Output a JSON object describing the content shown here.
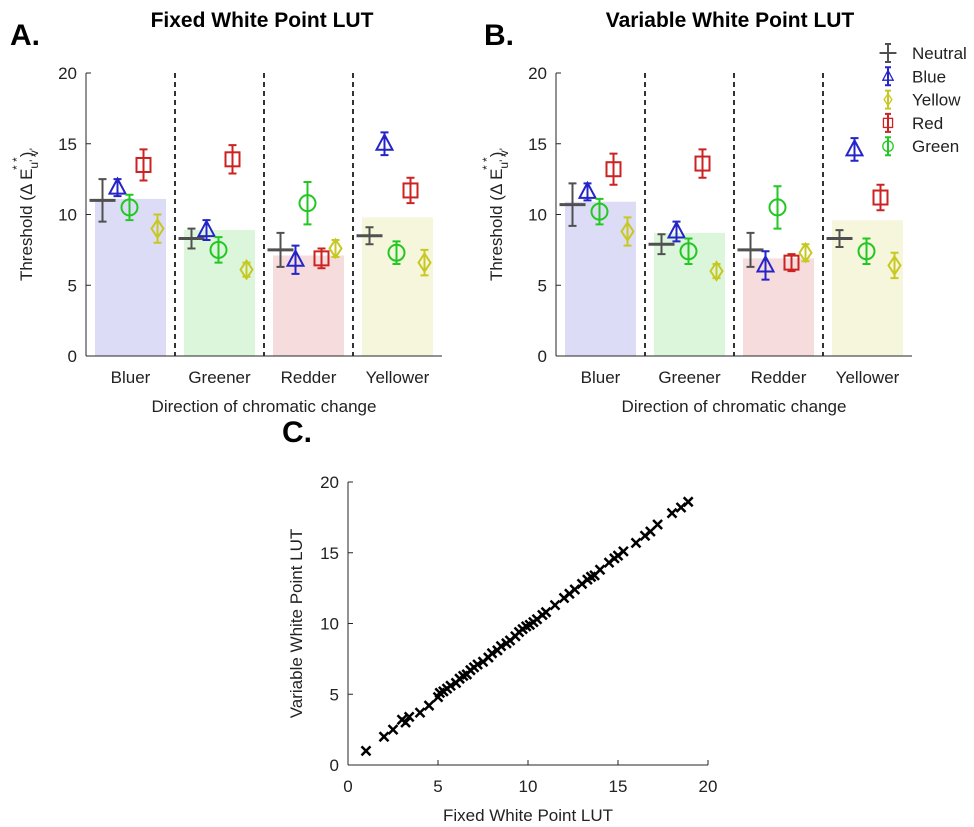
{
  "chart_data": [
    {
      "type": "errorbar",
      "panel_label": "A.",
      "title": "Fixed White Point LUT",
      "x_label": "Direction of chromatic change",
      "y_label": {
        "main": "Threshold (Δ E",
        "sub": "u' v'",
        "sup": "* *",
        "end": ")"
      },
      "categories": [
        "Bluer",
        "Greener",
        "Redder",
        "Yellower"
      ],
      "bar_values": [
        11.1,
        8.9,
        7.1,
        9.8
      ],
      "bar_colors": [
        "#dcdcf6",
        "#dcf6dc",
        "#f6dcdc",
        "#f6f6dc"
      ],
      "ylim": [
        0,
        20
      ],
      "yticks": [
        0,
        5,
        10,
        15,
        20
      ],
      "legend": false,
      "series": [
        {
          "marker": "plus",
          "color": "#505050",
          "values": [
            11.0,
            8.3,
            7.5,
            8.5
          ],
          "errors": [
            1.5,
            0.7,
            1.2,
            0.6
          ]
        },
        {
          "marker": "triangle",
          "color": "#2424c8",
          "values": [
            11.9,
            8.9,
            6.8,
            15.0
          ],
          "errors": [
            0.6,
            0.7,
            1.0,
            0.8
          ]
        },
        {
          "marker": "diamond",
          "color": "#c8c822",
          "values": [
            9.0,
            6.1,
            7.6,
            6.6
          ],
          "errors": [
            1.0,
            0.5,
            0.6,
            0.9
          ]
        },
        {
          "marker": "square",
          "color": "#cc2222",
          "values": [
            13.5,
            13.9,
            6.9,
            11.7
          ],
          "errors": [
            1.1,
            1.0,
            0.7,
            0.9
          ]
        },
        {
          "marker": "circle",
          "color": "#22c822",
          "values": [
            10.5,
            7.5,
            10.8,
            7.3
          ],
          "errors": [
            0.9,
            0.9,
            1.5,
            0.8
          ]
        }
      ]
    },
    {
      "type": "errorbar",
      "panel_label": "B.",
      "title": "Variable White Point LUT",
      "x_label": "Direction of chromatic change",
      "y_label": {
        "main": "Threshold (Δ E",
        "sub": "u' v'",
        "sup": "* *",
        "end": ")"
      },
      "categories": [
        "Bluer",
        "Greener",
        "Redder",
        "Yellower"
      ],
      "bar_values": [
        10.9,
        8.7,
        6.9,
        9.6
      ],
      "bar_colors": [
        "#dcdcf6",
        "#dcf6dc",
        "#f6dcdc",
        "#f6f6dc"
      ],
      "ylim": [
        0,
        20
      ],
      "yticks": [
        0,
        5,
        10,
        15,
        20
      ],
      "legend": "upper right",
      "series": [
        {
          "name": "Neutral",
          "marker": "plus",
          "color": "#505050",
          "values": [
            10.7,
            7.9,
            7.5,
            8.3
          ],
          "errors": [
            1.5,
            0.7,
            1.2,
            0.6
          ]
        },
        {
          "name": "Blue",
          "marker": "triangle",
          "color": "#2424c8",
          "values": [
            11.6,
            8.8,
            6.4,
            14.6
          ],
          "errors": [
            0.6,
            0.7,
            1.0,
            0.8
          ]
        },
        {
          "name": "Yellow",
          "marker": "diamond",
          "color": "#c8c822",
          "values": [
            8.8,
            6.0,
            7.3,
            6.4
          ],
          "errors": [
            1.0,
            0.5,
            0.6,
            0.9
          ]
        },
        {
          "name": "Red",
          "marker": "square",
          "color": "#cc2222",
          "values": [
            13.2,
            13.6,
            6.6,
            11.2
          ],
          "errors": [
            1.1,
            1.0,
            0.6,
            0.9
          ]
        },
        {
          "name": "Green",
          "marker": "circle",
          "color": "#22c822",
          "values": [
            10.2,
            7.4,
            10.5,
            7.4
          ],
          "errors": [
            0.9,
            0.9,
            1.5,
            0.9
          ]
        }
      ]
    },
    {
      "type": "scatter",
      "panel_label": "C.",
      "x_label": "Fixed White Point LUT",
      "y_label": "Variable White Point LUT",
      "marker": "x",
      "color": "#000000",
      "xlim": [
        0,
        20
      ],
      "ylim": [
        0,
        20
      ],
      "xticks": [
        0,
        5,
        10,
        15,
        20
      ],
      "yticks": [
        0,
        5,
        10,
        15,
        20
      ],
      "x": [
        1,
        2,
        2.5,
        3,
        3.2,
        3.4,
        4,
        4.5,
        5,
        5.1,
        5.3,
        5.5,
        5.7,
        6,
        6.2,
        6.4,
        6.6,
        6.8,
        7,
        7.2,
        7.5,
        7.8,
        8,
        8.3,
        8.5,
        8.8,
        9,
        9.3,
        9.5,
        9.7,
        9.9,
        10.1,
        10.3,
        10.5,
        10.8,
        11,
        11.5,
        12,
        12.3,
        12.6,
        13,
        13.3,
        13.5,
        13.7,
        14,
        14.5,
        14.8,
        15,
        15.3,
        16,
        16.5,
        16.8,
        17.2,
        18,
        18.5,
        18.9
      ],
      "y": [
        1,
        2,
        2.5,
        3.2,
        3,
        3.4,
        3.7,
        4.2,
        4.8,
        5.1,
        5.2,
        5.4,
        5.6,
        5.8,
        6.1,
        6.3,
        6.4,
        6.7,
        6.9,
        7.1,
        7.3,
        7.6,
        7.9,
        8.1,
        8.4,
        8.6,
        8.8,
        9.1,
        9.4,
        9.6,
        9.8,
        9.9,
        10.1,
        10.3,
        10.6,
        10.8,
        11.3,
        11.8,
        12.1,
        12.4,
        12.8,
        13.1,
        13.3,
        13.4,
        13.8,
        14.3,
        14.6,
        14.8,
        15.1,
        15.7,
        16.2,
        16.5,
        17,
        17.8,
        18.2,
        18.6
      ]
    }
  ]
}
